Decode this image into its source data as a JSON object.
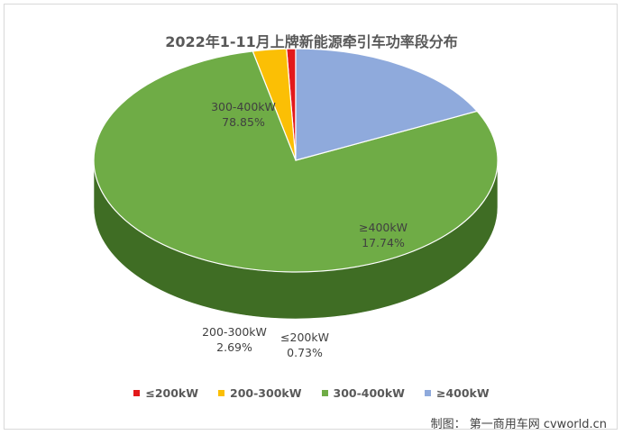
{
  "chart_data": {
    "type": "pie",
    "title": "2022年1-11月上牌新能源牵引车功率段分布",
    "series": [
      {
        "name": "≤200kW",
        "value": 0.73,
        "label": "0.73%",
        "color": "#e3191b",
        "side_color": "#a40f12"
      },
      {
        "name": "200-300kW",
        "value": 2.69,
        "label": "2.69%",
        "color": "#fbbf05",
        "side_color": "#b07a00"
      },
      {
        "name": "300-400kW",
        "value": 78.85,
        "label": "78.85%",
        "color": "#6fac46",
        "side_color": "#3f6d24"
      },
      {
        "name": "≥400kW",
        "value": 17.74,
        "label": "17.74%",
        "color": "#8faadc",
        "side_color": "#3e4d6a"
      }
    ],
    "legend": "bottom"
  },
  "source": "制图：  第一商用车网 cvworld.cn"
}
